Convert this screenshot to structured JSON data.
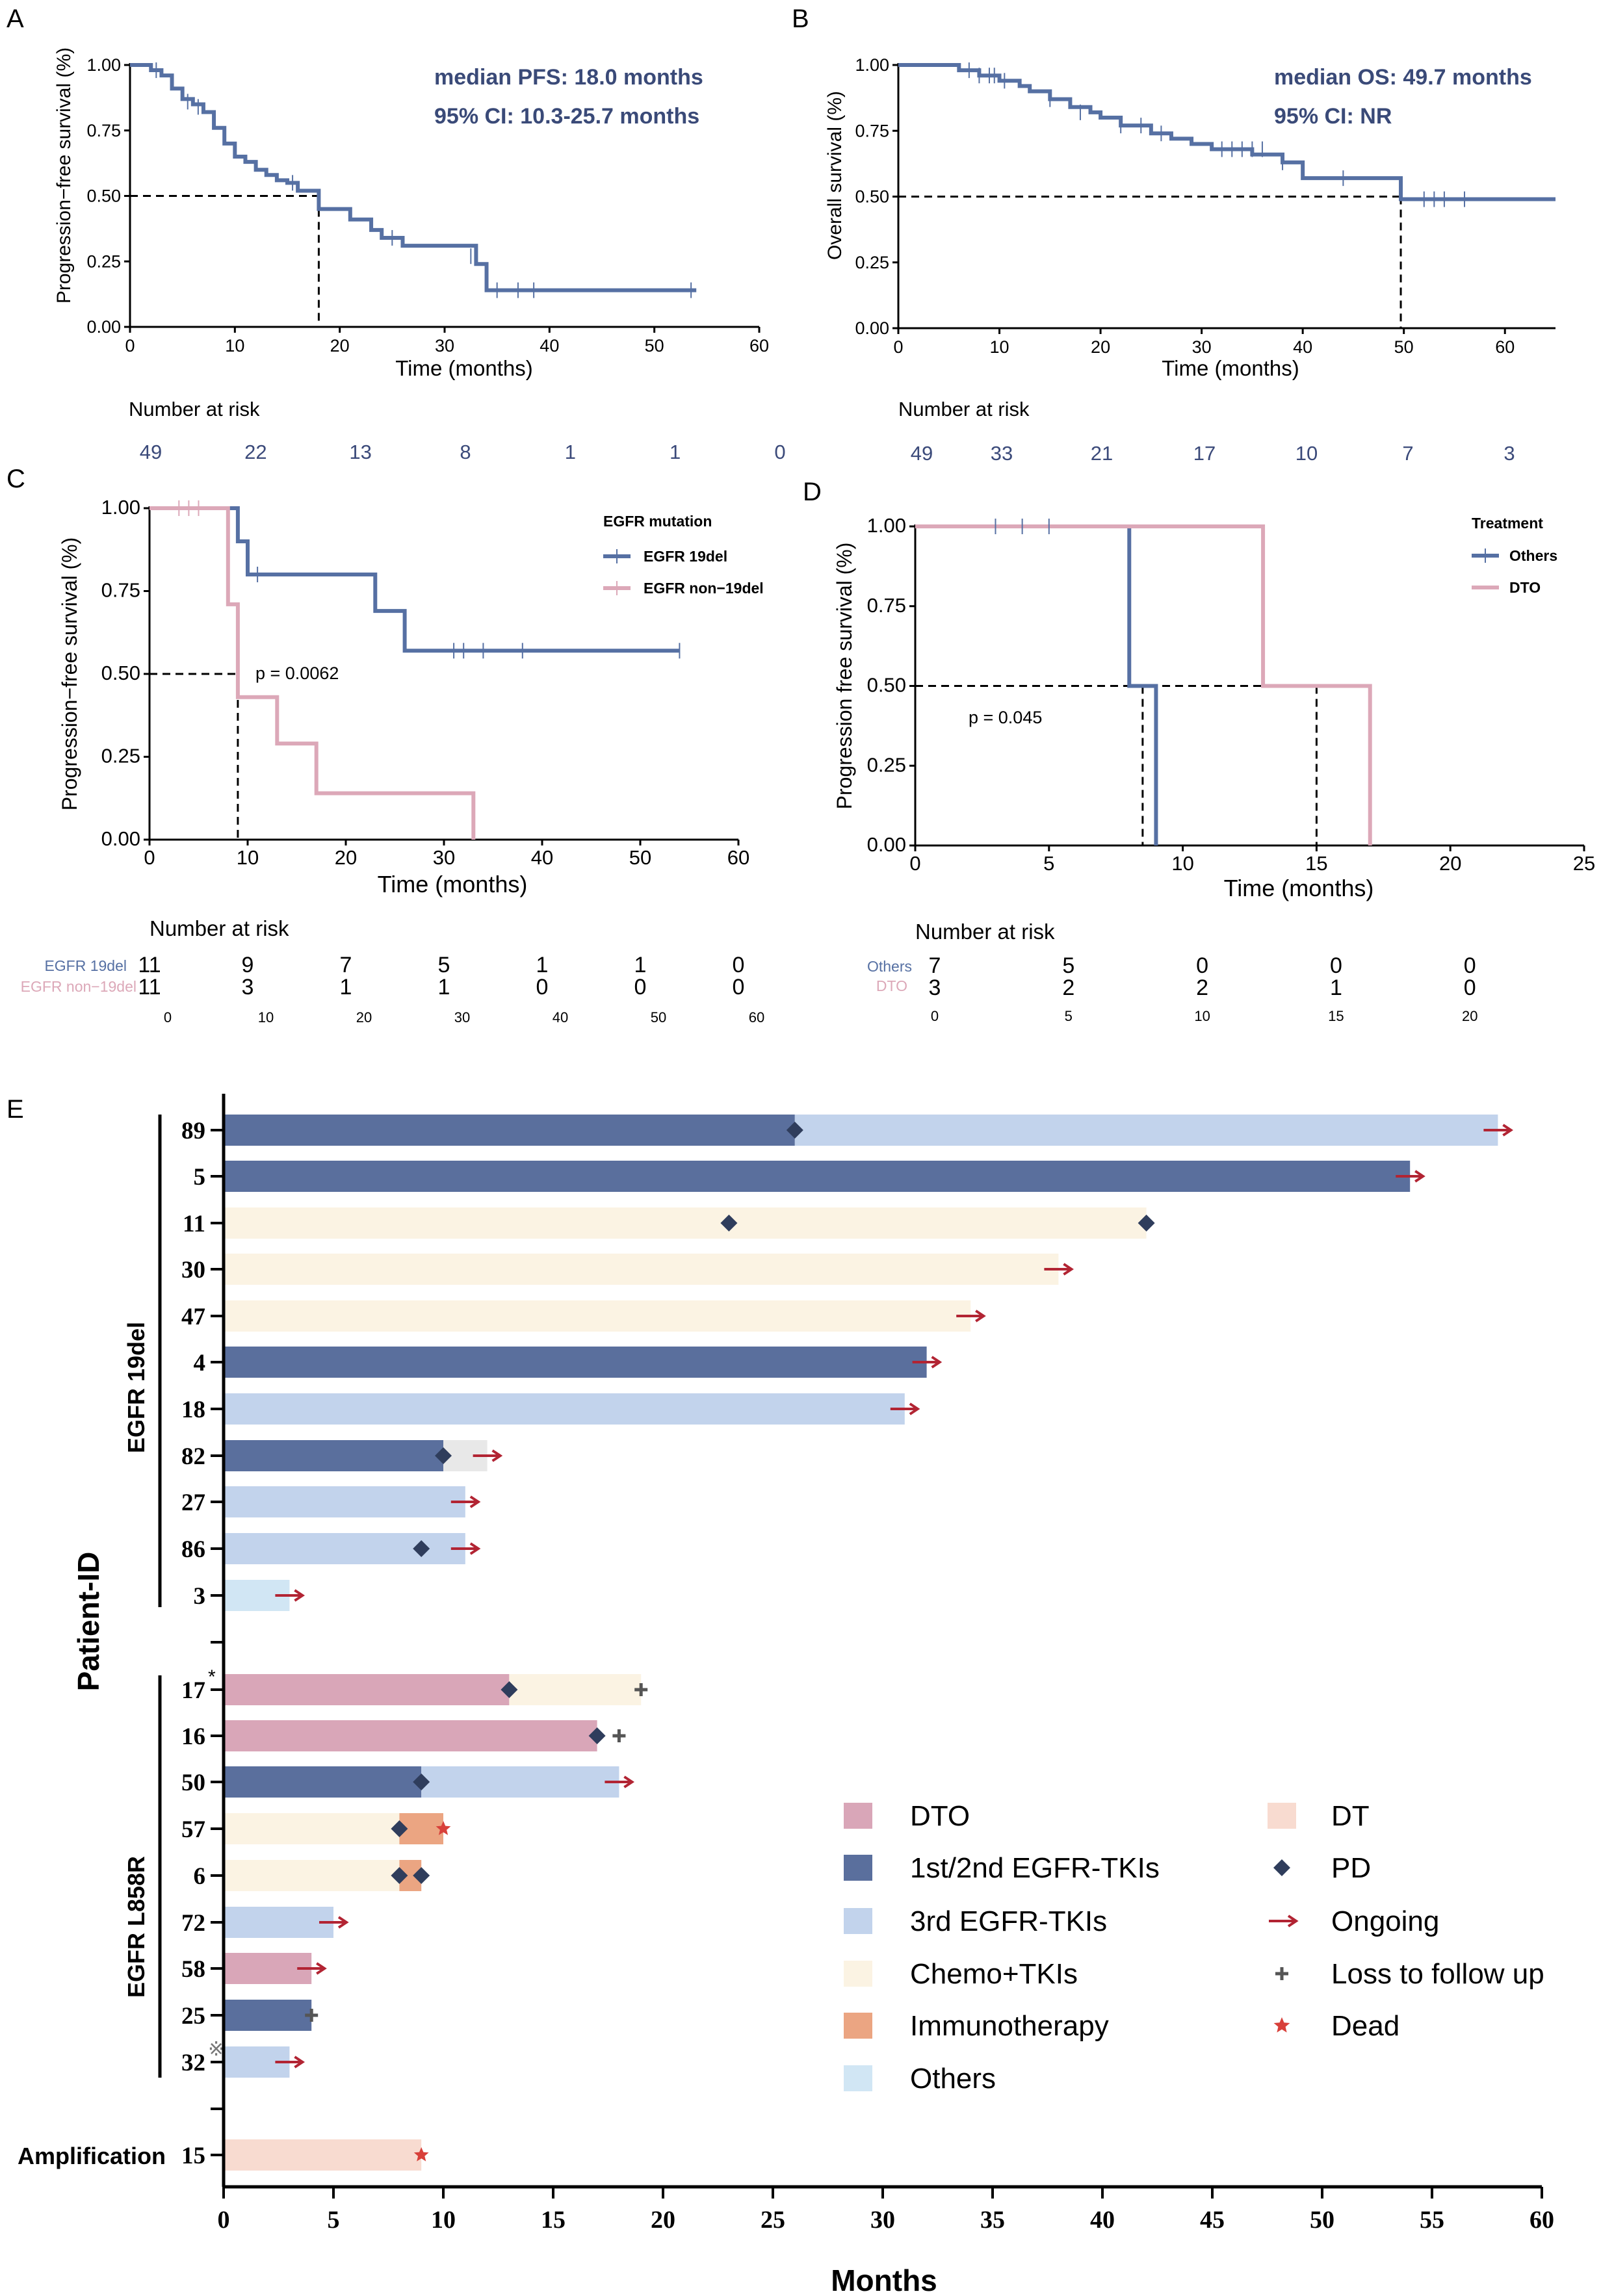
{
  "colors": {
    "blue": "#5670a3",
    "pink": "#dca8b8",
    "axis": "#000000",
    "risk_text": "#3b4a7a",
    "anno_text": "#3a4a78",
    "arrow": "#b22433",
    "pd": "#2f3d5c",
    "dead": "#d8403a",
    "loss": "#555555",
    "seg_dto": "#d9a6b8",
    "seg_tki12": "#5a6f9d",
    "seg_tki3": "#c2d3ec",
    "seg_chemo": "#fbf3e3",
    "seg_immuno": "#eba582",
    "seg_others": "#d1e6f4",
    "seg_dt": "#f8dbd0",
    "seg_grey": "#e8e8e8"
  },
  "panels": {
    "A": {
      "letter": "A",
      "ylabel": "Progression−free survival (%)",
      "xlabel": "Time (months)",
      "annot1": "median PFS: 18.0 months",
      "annot2": "95% CI: 10.3-25.7 months",
      "risk_title": "Number at risk"
    },
    "B": {
      "letter": "B",
      "ylabel": "Overall survival (%)",
      "xlabel": "Time (months)",
      "annot1": "median OS: 49.7 months",
      "annot2": "95% CI: NR",
      "risk_title": "Number at risk"
    },
    "C": {
      "letter": "C",
      "ylabel": "Progression−free survival (%)",
      "xlabel": "Time (months)",
      "legend_title": "EGFR mutation",
      "legend1": "EGFR 19del",
      "legend2": "EGFR non−19del",
      "pvalue": "p = 0.0062",
      "risk_title": "Number at risk",
      "risk_label1": "EGFR 19del",
      "risk_label2": "EGFR non−19del"
    },
    "D": {
      "letter": "D",
      "ylabel": "Progression free survival (%)",
      "xlabel": "Time (months)",
      "legend_title": "Treatment",
      "legend1": "Others",
      "legend2": "DTO",
      "pvalue": "p = 0.045",
      "risk_title": "Number at risk",
      "risk_label1": "Others",
      "risk_label2": "DTO"
    },
    "E": {
      "letter": "E",
      "ylabel": "Patient-ID",
      "xlabel": "Months",
      "group1": "EGFR 19del",
      "group2": "EGFR L858R",
      "group3": "Amplification"
    }
  },
  "chart_data": [
    {
      "id": "A",
      "type": "line",
      "title": "median PFS: 18.0 months; 95% CI: 10.3-25.7 months",
      "xlabel": "Time (months)",
      "ylabel": "Progression−free survival (%)",
      "xlim": [
        0,
        60
      ],
      "ylim": [
        0,
        1
      ],
      "xticks": [
        "0",
        "10",
        "20",
        "30",
        "40",
        "50",
        "60"
      ],
      "yticks": [
        "0.00",
        "0.25",
        "0.50",
        "0.75",
        "1.00"
      ],
      "series": [
        {
          "name": "PFS",
          "color": "#5670a3",
          "x": [
            0,
            2,
            3,
            4,
            5,
            6,
            7,
            8,
            9,
            10,
            11,
            12,
            13,
            14,
            15,
            16,
            18,
            19,
            21,
            23,
            24,
            26,
            33,
            34,
            54
          ],
          "y": [
            1,
            0.98,
            0.96,
            0.91,
            0.87,
            0.85,
            0.82,
            0.76,
            0.7,
            0.65,
            0.63,
            0.6,
            0.58,
            0.56,
            0.55,
            0.52,
            0.45,
            0.45,
            0.41,
            0.37,
            0.34,
            0.31,
            0.24,
            0.14,
            0.14
          ]
        }
      ],
      "censor": {
        "x": [
          2.5,
          5.5,
          6.5,
          15.5,
          25,
          32.5,
          35,
          37,
          38.5,
          53.5
        ],
        "y": [
          0.98,
          0.86,
          0.84,
          0.55,
          0.34,
          0.27,
          0.14,
          0.14,
          0.14,
          0.14
        ]
      },
      "median": 18.0,
      "risk_x": [
        "0",
        "10",
        "20",
        "30",
        "40",
        "50",
        "60"
      ],
      "risk_values": [
        "49",
        "22",
        "13",
        "8",
        "1",
        "1",
        "0"
      ]
    },
    {
      "id": "B",
      "type": "line",
      "title": "median OS: 49.7 months; 95% CI: NR",
      "xlabel": "Time (months)",
      "ylabel": "Overall survival (%)",
      "xlim": [
        0,
        65
      ],
      "ylim": [
        0,
        1
      ],
      "xticks": [
        "0",
        "10",
        "20",
        "30",
        "40",
        "50",
        "60"
      ],
      "yticks": [
        "0.00",
        "0.25",
        "0.50",
        "0.75",
        "1.00"
      ],
      "series": [
        {
          "name": "OS",
          "color": "#5670a3",
          "x": [
            0,
            6,
            8,
            10,
            12,
            13,
            15,
            17,
            19,
            20,
            22,
            25,
            27,
            29,
            31,
            35,
            38,
            40,
            44,
            49.7,
            65
          ],
          "y": [
            1,
            0.98,
            0.96,
            0.94,
            0.92,
            0.9,
            0.87,
            0.84,
            0.82,
            0.8,
            0.77,
            0.74,
            0.72,
            0.7,
            0.68,
            0.66,
            0.63,
            0.57,
            0.57,
            0.49,
            0.49
          ]
        }
      ],
      "censor": {
        "x": [
          7,
          8,
          9,
          9.5,
          10.5,
          15,
          18,
          22,
          24,
          26,
          32,
          33,
          34,
          35,
          36,
          38,
          44,
          52,
          53,
          54,
          56
        ],
        "y": [
          0.98,
          0.96,
          0.96,
          0.96,
          0.94,
          0.87,
          0.82,
          0.77,
          0.77,
          0.74,
          0.68,
          0.68,
          0.68,
          0.68,
          0.68,
          0.63,
          0.57,
          0.49,
          0.49,
          0.49,
          0.49
        ]
      },
      "median": 49.7,
      "risk_x": [
        "0",
        "10",
        "20",
        "30",
        "40",
        "50",
        "60"
      ],
      "risk_values": [
        "49",
        "33",
        "21",
        "17",
        "10",
        "7",
        "3"
      ]
    },
    {
      "id": "C",
      "type": "line",
      "xlabel": "Time (months)",
      "ylabel": "Progression−free survival (%)",
      "xlim": [
        0,
        60
      ],
      "ylim": [
        0,
        1
      ],
      "xticks": [
        "0",
        "10",
        "20",
        "30",
        "40",
        "50",
        "60"
      ],
      "yticks": [
        "0.00",
        "0.25",
        "0.50",
        "0.75",
        "1.00"
      ],
      "pvalue": "p = 0.0062",
      "series": [
        {
          "name": "EGFR 19del",
          "color": "#5670a3",
          "x": [
            0,
            9,
            10,
            23,
            26,
            54
          ],
          "y": [
            1,
            0.9,
            0.8,
            0.69,
            0.57,
            0.57
          ]
        },
        {
          "name": "EGFR non−19del",
          "color": "#dca8b8",
          "x": [
            0,
            8,
            9,
            13,
            17,
            33,
            33
          ],
          "y": [
            1,
            0.71,
            0.43,
            0.29,
            0.14,
            0.14,
            0
          ]
        }
      ],
      "censor_19del": {
        "x": [
          11,
          31,
          32,
          34,
          38,
          54
        ],
        "y": [
          0.8,
          0.57,
          0.57,
          0.57,
          0.57,
          0.57
        ]
      },
      "censor_non19": {
        "x": [
          3,
          4,
          5
        ],
        "y": [
          1,
          1,
          1
        ]
      },
      "median": 9,
      "risk_x": [
        "0",
        "10",
        "20",
        "30",
        "40",
        "50",
        "60"
      ],
      "risk_19del": [
        "11",
        "9",
        "7",
        "5",
        "1",
        "1",
        "0"
      ],
      "risk_non19": [
        "11",
        "3",
        "1",
        "1",
        "0",
        "0",
        "0"
      ]
    },
    {
      "id": "D",
      "type": "line",
      "xlabel": "Time (months)",
      "ylabel": "Progression free survival (%)",
      "xlim": [
        0,
        25
      ],
      "ylim": [
        0,
        1
      ],
      "xticks": [
        "0",
        "5",
        "10",
        "15",
        "20",
        "25"
      ],
      "yticks": [
        "0.00",
        "0.25",
        "0.50",
        "0.75",
        "1.00"
      ],
      "pvalue": "p = 0.045",
      "series": [
        {
          "name": "Others",
          "color": "#5670a3",
          "x": [
            0,
            8,
            9,
            9
          ],
          "y": [
            1,
            0.5,
            0.5,
            0
          ]
        },
        {
          "name": "DTO",
          "color": "#dca8b8",
          "x": [
            0,
            13,
            17,
            17
          ],
          "y": [
            1,
            0.5,
            0.5,
            0
          ]
        }
      ],
      "censor_others": {
        "x": [
          3,
          4,
          5
        ],
        "y": [
          1,
          1,
          1
        ]
      },
      "medians": [
        8.5,
        15
      ],
      "risk_x": [
        "0",
        "5",
        "10",
        "15",
        "20"
      ],
      "risk_others": [
        "7",
        "5",
        "0",
        "0",
        "0"
      ],
      "risk_dto": [
        "3",
        "2",
        "2",
        "1",
        "0"
      ]
    },
    {
      "id": "E",
      "type": "bar",
      "xlabel": "Months",
      "ylabel": "Patient-ID",
      "xlim": [
        0,
        60
      ],
      "xticks": [
        "0",
        "5",
        "10",
        "15",
        "20",
        "25",
        "30",
        "35",
        "40",
        "45",
        "50",
        "55",
        "60"
      ],
      "legend": [
        {
          "key": "dto",
          "label": "DTO"
        },
        {
          "key": "tki12",
          "label": "1st/2nd EGFR-TKIs"
        },
        {
          "key": "tki3",
          "label": "3rd EGFR-TKIs"
        },
        {
          "key": "chemo",
          "label": "Chemo+TKIs"
        },
        {
          "key": "immuno",
          "label": "Immunotherapy"
        },
        {
          "key": "others",
          "label": "Others"
        },
        {
          "key": "dt",
          "label": "DT"
        },
        {
          "key": "pd",
          "label": "PD"
        },
        {
          "key": "ongoing",
          "label": "Ongoing"
        },
        {
          "key": "loss",
          "label": "Loss to follow up"
        },
        {
          "key": "dead",
          "label": "Dead"
        }
      ],
      "patients": [
        {
          "id": "89",
          "mark": "",
          "segments": [
            [
              "tki12",
              0,
              26
            ],
            [
              "tki3",
              26,
              58
            ]
          ],
          "pd": [
            26
          ],
          "end": "ongoing",
          "end_x": 58
        },
        {
          "id": "5",
          "mark": "",
          "segments": [
            [
              "tki12",
              0,
              54
            ]
          ],
          "pd": [],
          "end": "ongoing",
          "end_x": 54
        },
        {
          "id": "11",
          "mark": "",
          "segments": [
            [
              "chemo",
              0,
              42
            ]
          ],
          "pd": [
            23,
            42
          ],
          "end": "",
          "end_x": 42
        },
        {
          "id": "30",
          "mark": "",
          "segments": [
            [
              "chemo",
              0,
              38
            ]
          ],
          "pd": [],
          "end": "ongoing",
          "end_x": 38
        },
        {
          "id": "47",
          "mark": "",
          "segments": [
            [
              "chemo",
              0,
              34
            ]
          ],
          "pd": [],
          "end": "ongoing",
          "end_x": 34
        },
        {
          "id": "4",
          "mark": "",
          "segments": [
            [
              "tki12",
              0,
              32
            ]
          ],
          "pd": [],
          "end": "ongoing",
          "end_x": 32
        },
        {
          "id": "18",
          "mark": "",
          "segments": [
            [
              "tki3",
              0,
              31
            ]
          ],
          "pd": [],
          "end": "ongoing",
          "end_x": 31
        },
        {
          "id": "82",
          "mark": "",
          "segments": [
            [
              "tki12",
              0,
              10
            ],
            [
              "grey",
              10,
              12
            ]
          ],
          "pd": [
            10
          ],
          "end": "ongoing",
          "end_x": 12
        },
        {
          "id": "27",
          "mark": "",
          "segments": [
            [
              "tki3",
              0,
              11
            ]
          ],
          "pd": [],
          "end": "ongoing",
          "end_x": 11
        },
        {
          "id": "86",
          "mark": "",
          "segments": [
            [
              "tki3",
              0,
              11
            ]
          ],
          "pd": [
            9
          ],
          "end": "ongoing",
          "end_x": 11
        },
        {
          "id": "3",
          "mark": "",
          "segments": [
            [
              "others",
              0,
              3
            ]
          ],
          "pd": [],
          "end": "ongoing",
          "end_x": 3
        },
        {
          "id": "17",
          "mark": "*",
          "segments": [
            [
              "dto",
              0,
              13
            ],
            [
              "chemo",
              13,
              19
            ]
          ],
          "pd": [
            13
          ],
          "end": "loss",
          "end_x": 19
        },
        {
          "id": "16",
          "mark": "",
          "segments": [
            [
              "dto",
              0,
              17
            ]
          ],
          "pd": [
            17
          ],
          "end": "loss",
          "end_x": 18
        },
        {
          "id": "50",
          "mark": "",
          "segments": [
            [
              "tki12",
              0,
              9
            ],
            [
              "tki3",
              9,
              18
            ]
          ],
          "pd": [
            9
          ],
          "end": "ongoing",
          "end_x": 18
        },
        {
          "id": "57",
          "mark": "",
          "segments": [
            [
              "chemo",
              0,
              8
            ],
            [
              "immuno",
              8,
              10
            ]
          ],
          "pd": [
            8
          ],
          "end": "dead",
          "end_x": 10
        },
        {
          "id": "6",
          "mark": "",
          "segments": [
            [
              "chemo",
              0,
              8
            ],
            [
              "immuno",
              8,
              9
            ]
          ],
          "pd": [
            8,
            9
          ],
          "end": "",
          "end_x": 9
        },
        {
          "id": "72",
          "mark": "",
          "segments": [
            [
              "tki3",
              0,
              5
            ]
          ],
          "pd": [],
          "end": "ongoing",
          "end_x": 5
        },
        {
          "id": "58",
          "mark": "",
          "segments": [
            [
              "dto",
              0,
              4
            ]
          ],
          "pd": [],
          "end": "ongoing",
          "end_x": 4
        },
        {
          "id": "25",
          "mark": "",
          "segments": [
            [
              "tki12",
              0,
              4
            ]
          ],
          "pd": [],
          "end": "loss",
          "end_x": 4
        },
        {
          "id": "32",
          "mark": "※",
          "segments": [
            [
              "tki3",
              0,
              3
            ]
          ],
          "pd": [],
          "end": "ongoing",
          "end_x": 3
        },
        {
          "id": "15",
          "mark": "",
          "segments": [
            [
              "dt",
              0,
              9
            ]
          ],
          "pd": [],
          "end": "dead",
          "end_x": 9
        }
      ]
    }
  ]
}
